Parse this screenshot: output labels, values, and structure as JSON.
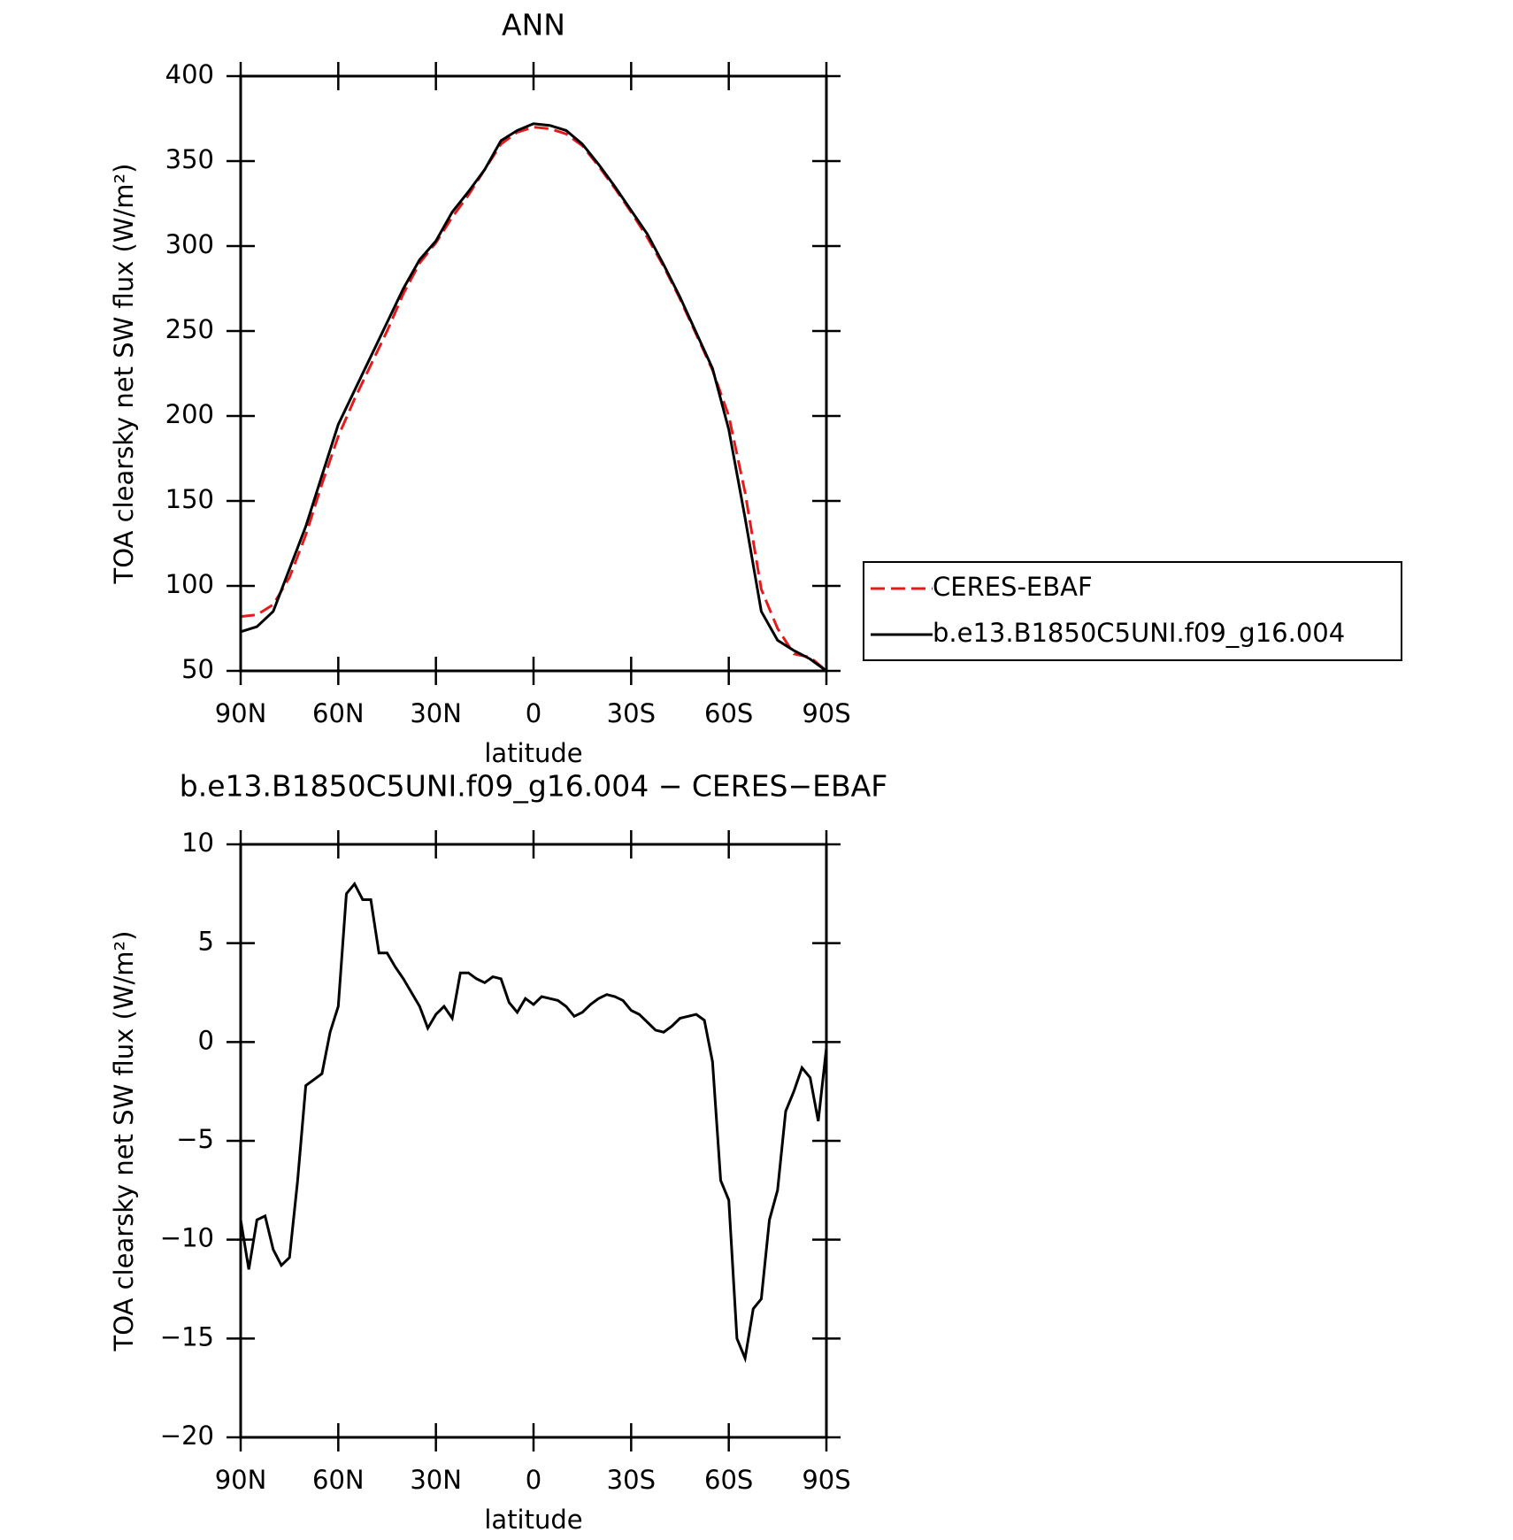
{
  "chart_data": [
    {
      "type": "line",
      "title": "ANN",
      "xlabel": "latitude",
      "ylabel": "TOA clearsky net SW flux (W/m²)",
      "x": [
        90,
        85,
        80,
        75,
        70,
        65,
        60,
        55,
        50,
        45,
        40,
        35,
        30,
        25,
        20,
        15,
        10,
        5,
        0,
        -5,
        -10,
        -15,
        -20,
        -25,
        -30,
        -35,
        -40,
        -45,
        -50,
        -55,
        -60,
        -65,
        -70,
        -75,
        -80,
        -85,
        -90
      ],
      "series": [
        {
          "name": "CERES-EBAF",
          "color": "#e41a1c",
          "dash": true,
          "values": [
            82,
            83,
            89,
            105,
            130,
            160,
            188,
            210,
            230,
            250,
            272,
            290,
            302,
            317,
            330,
            345,
            360,
            367,
            370,
            369,
            366,
            359,
            347,
            334,
            320,
            305,
            288,
            269,
            248,
            227,
            200,
            155,
            98,
            75,
            60,
            58,
            50
          ]
        },
        {
          "name": "b.e13.B1850C5UNI.f09_g16.004",
          "color": "#000000",
          "dash": false,
          "values": [
            73,
            76,
            85,
            110,
            135,
            165,
            195,
            215,
            235,
            255,
            275,
            292,
            303,
            320,
            332,
            345,
            362,
            368,
            372,
            371,
            368,
            360,
            348,
            335,
            321,
            307,
            289,
            270,
            249,
            228,
            192,
            140,
            85,
            68,
            62,
            57,
            50
          ]
        }
      ],
      "xlim": [
        90,
        -90
      ],
      "xticks": [
        {
          "value": 90,
          "label": "90N"
        },
        {
          "value": 60,
          "label": "60N"
        },
        {
          "value": 30,
          "label": "30N"
        },
        0,
        {
          "value": -30,
          "label": "30S"
        },
        {
          "value": -60,
          "label": "60S"
        },
        {
          "value": -90,
          "label": "90S"
        }
      ],
      "ylim": [
        50,
        400
      ],
      "yticks": [
        50,
        100,
        150,
        200,
        250,
        300,
        350,
        400
      ],
      "legend": "right"
    },
    {
      "type": "line",
      "title": "b.e13.B1850C5UNI.f09_g16.004 − CERES−EBAF",
      "xlabel": "latitude",
      "ylabel": "TOA clearsky net SW flux (W/m²)",
      "x": [
        90,
        87.5,
        85,
        82.5,
        80,
        77.5,
        75,
        72.5,
        70,
        67.5,
        65,
        62.5,
        60,
        57.5,
        55,
        52.5,
        50,
        47.5,
        45,
        42.5,
        40,
        37.5,
        35,
        32.5,
        30,
        27.5,
        25,
        22.5,
        20,
        17.5,
        15,
        12.5,
        10,
        7.5,
        5,
        2.5,
        0,
        -2.5,
        -5,
        -7.5,
        -10,
        -12.5,
        -15,
        -17.5,
        -20,
        -22.5,
        -25,
        -27.5,
        -30,
        -32.5,
        -35,
        -37.5,
        -40,
        -42.5,
        -45,
        -47.5,
        -50,
        -52.5,
        -55,
        -57.5,
        -60,
        -62.5,
        -65,
        -67.5,
        -70,
        -72.5,
        -75,
        -77.5,
        -80,
        -82.5,
        -85,
        -87.5,
        -90
      ],
      "series": [
        {
          "name": null,
          "color": "#000000",
          "dash": false,
          "values": [
            -9,
            -11.5,
            -9,
            -8.8,
            -10.5,
            -11.3,
            -10.9,
            -7,
            -2.2,
            -1.9,
            -1.6,
            0.5,
            1.8,
            7.5,
            8,
            7.2,
            7.2,
            4.5,
            4.5,
            3.8,
            3.2,
            2.5,
            1.8,
            0.7,
            1.4,
            1.8,
            1.2,
            3.5,
            3.5,
            3.2,
            3.0,
            3.3,
            3.2,
            2.0,
            1.5,
            2.2,
            1.9,
            2.3,
            2.2,
            2.1,
            1.8,
            1.3,
            1.5,
            1.9,
            2.2,
            2.4,
            2.3,
            2.1,
            1.6,
            1.4,
            1.0,
            0.6,
            0.5,
            0.8,
            1.2,
            1.3,
            1.4,
            1.1,
            -1,
            -7,
            -8,
            -15,
            -16,
            -13.5,
            -13,
            -9,
            -7.5,
            -3.5,
            -2.5,
            -1.3,
            -1.8,
            -4,
            -0.3
          ]
        }
      ],
      "xlim": [
        90,
        -90
      ],
      "xticks": [
        {
          "value": 90,
          "label": "90N"
        },
        {
          "value": 60,
          "label": "60N"
        },
        {
          "value": 30,
          "label": "30N"
        },
        0,
        {
          "value": -30,
          "label": "30S"
        },
        {
          "value": -60,
          "label": "60S"
        },
        {
          "value": -90,
          "label": "90S"
        }
      ],
      "ylim": [
        -20,
        10
      ],
      "yticks": [
        {
          "value": -20,
          "label": "−20"
        },
        {
          "value": -15,
          "label": "−15"
        },
        {
          "value": -10,
          "label": "−10"
        },
        {
          "value": -5,
          "label": "−5"
        },
        0,
        5,
        10
      ]
    }
  ]
}
